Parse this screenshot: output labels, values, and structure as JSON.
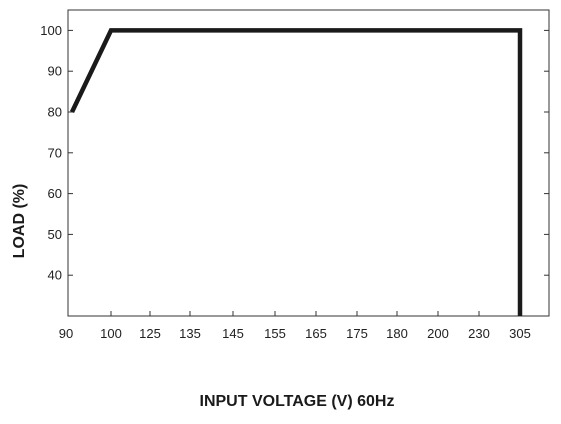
{
  "chart_data": {
    "type": "line",
    "title": "",
    "xlabel": "INPUT VOLTAGE (V) 60Hz",
    "ylabel": "LOAD (%)",
    "x_scale": "categorical",
    "x_ticks": [
      "90",
      "100",
      "125",
      "135",
      "145",
      "155",
      "165",
      "175",
      "180",
      "200",
      "230",
      "305"
    ],
    "y_ticks": [
      40,
      50,
      60,
      70,
      80,
      90,
      100
    ],
    "ylim": [
      30,
      105
    ],
    "grid": false,
    "legend": "none",
    "series": [
      {
        "x": [
          "90",
          "100",
          "305",
          "305"
        ],
        "y": [
          80,
          100,
          100,
          30
        ]
      }
    ],
    "colors": {
      "line": "#1a1a1a",
      "frame": "#333333"
    }
  }
}
